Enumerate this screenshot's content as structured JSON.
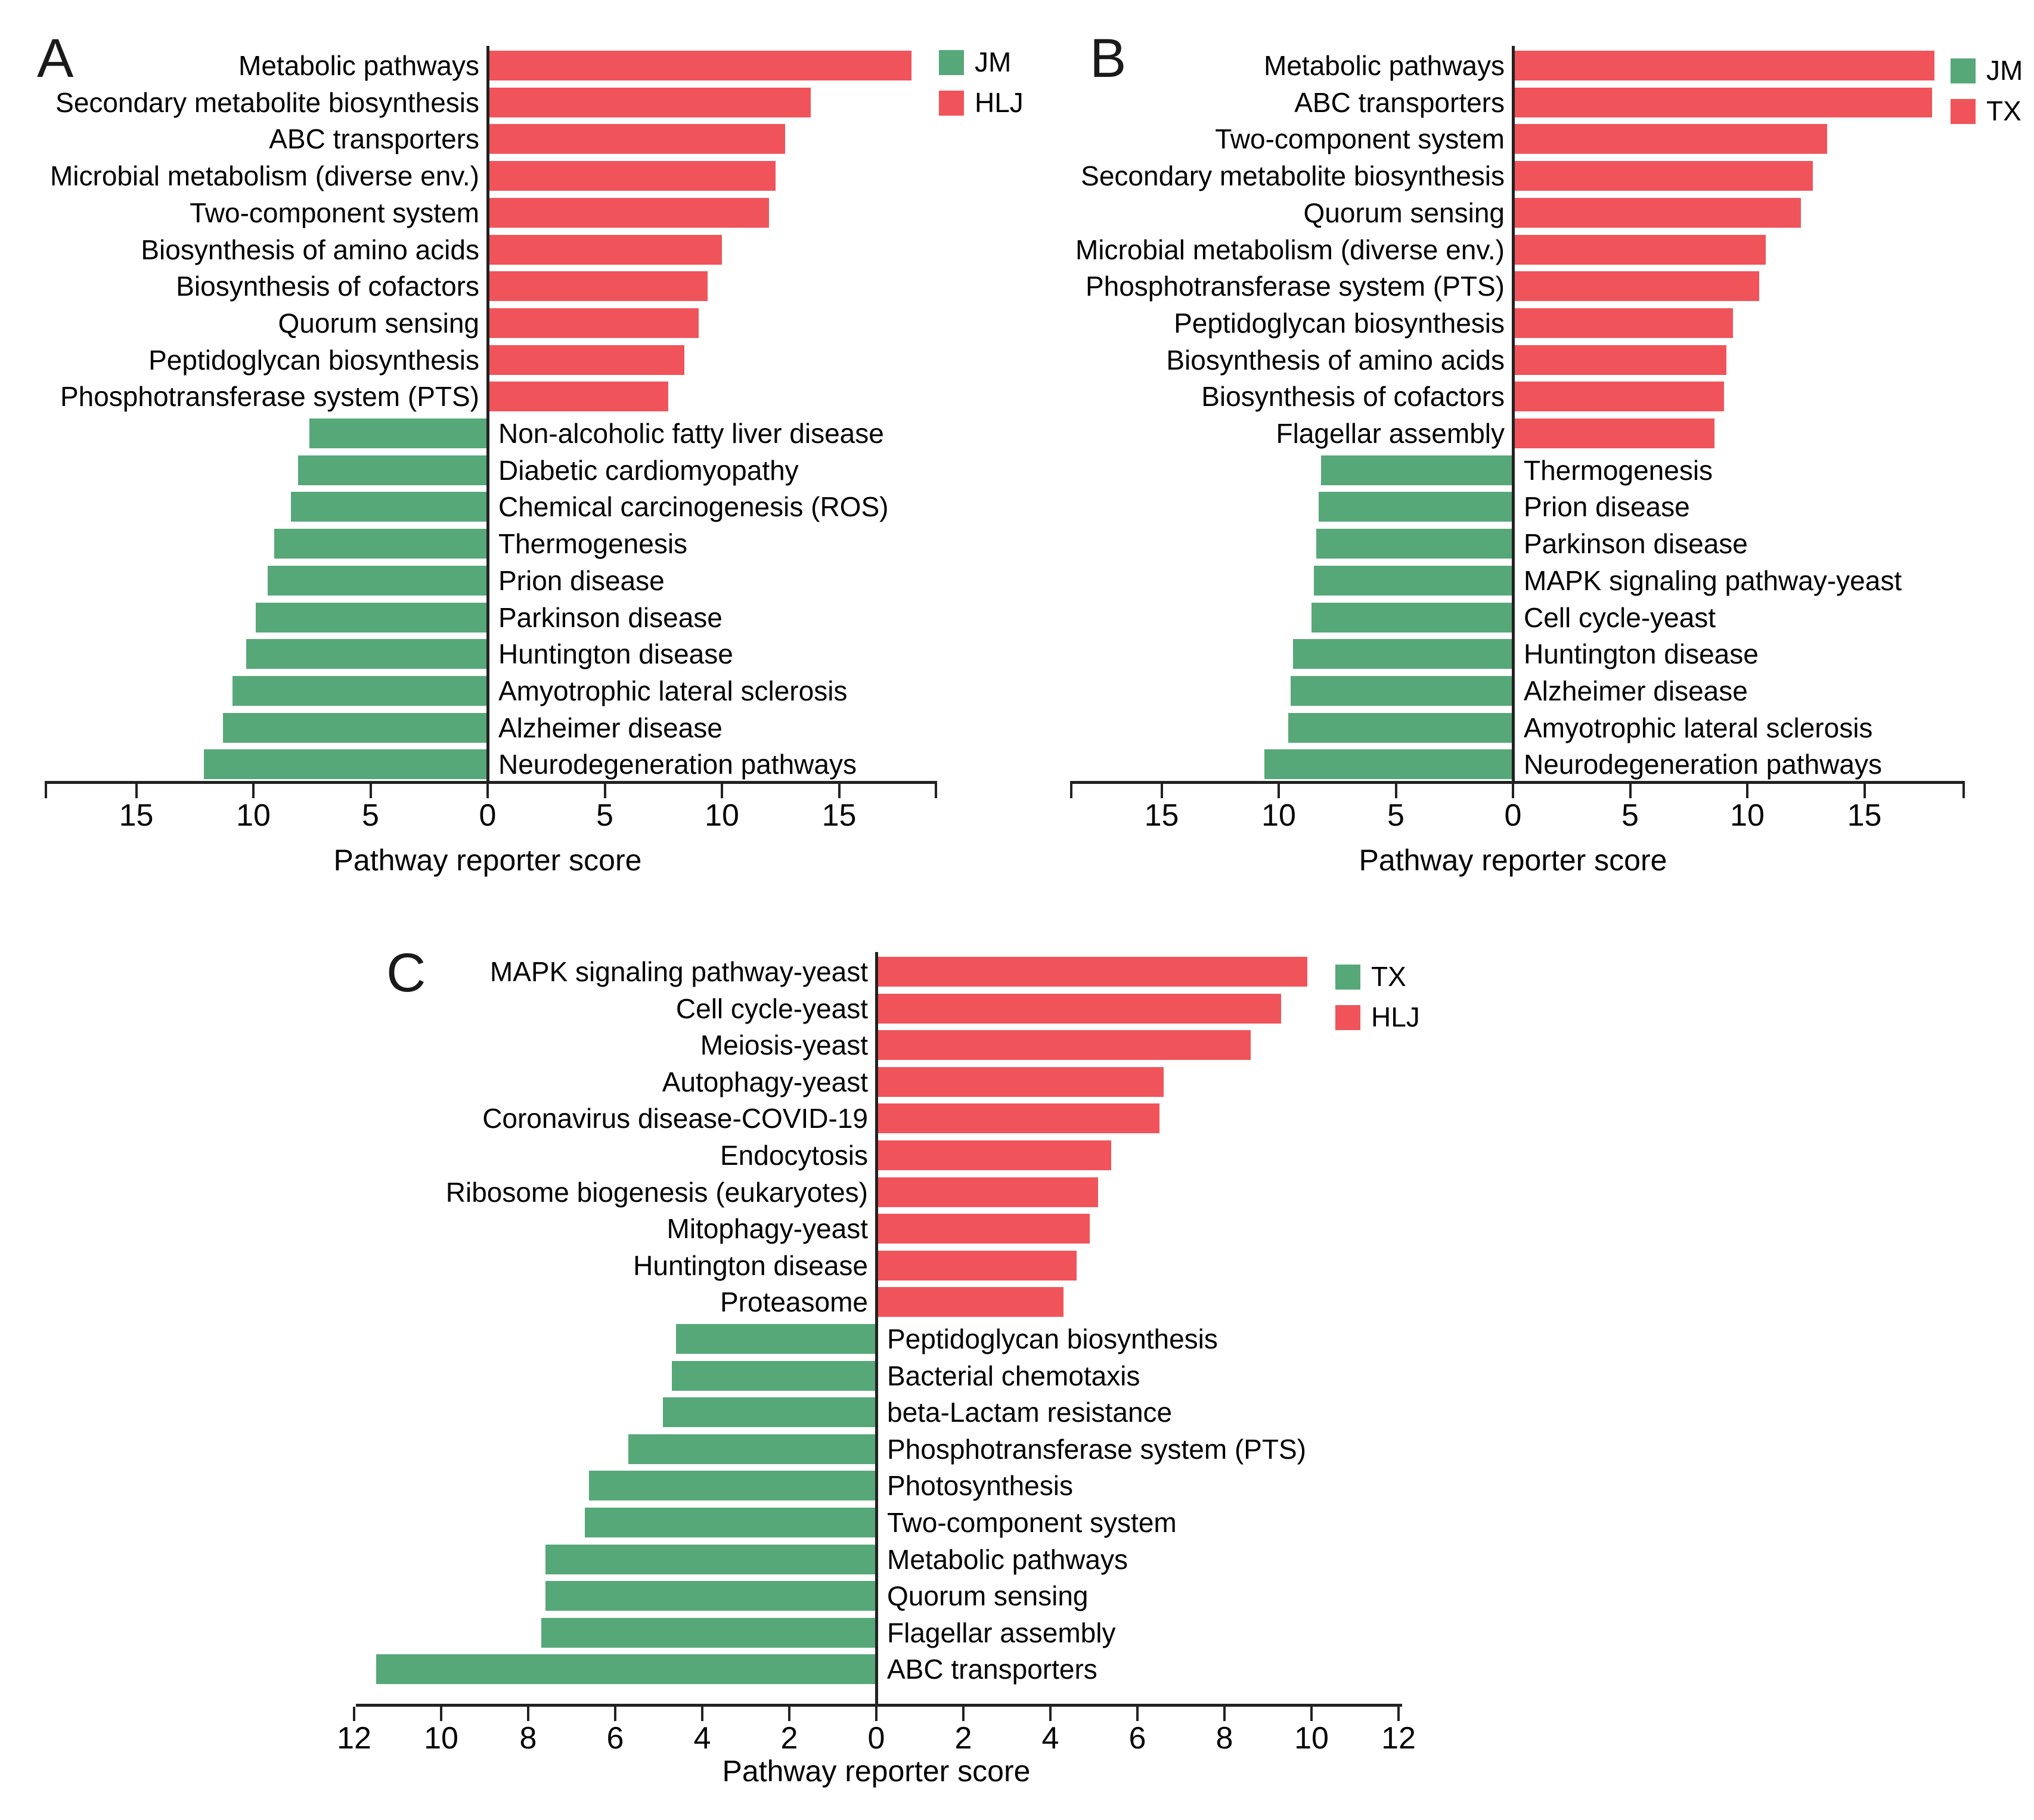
{
  "figure": {
    "xlabel": "Pathway reporter score",
    "colors": {
      "green": "#56a878",
      "red": "#f0545a",
      "axis": "#222222",
      "text": "#000000"
    }
  },
  "chart_data": [
    {
      "id": "A",
      "panel_label": "A",
      "type": "bar",
      "orientation": "horizontal-diverging",
      "xlabel": "Pathway reporter score",
      "xlim": [
        -19,
        19.2
      ],
      "grid": false,
      "legend_position": "top-right",
      "axis": {
        "tick_values": [
          -15,
          -10,
          -5,
          0,
          5,
          10,
          15
        ],
        "tick_labels": [
          "15",
          "10",
          "5",
          "0",
          "5",
          "10",
          "15"
        ]
      },
      "legend": [
        {
          "label": "JM",
          "color": "green"
        },
        {
          "label": "HLJ",
          "color": "red"
        }
      ],
      "bars": [
        {
          "label": "Metabolic pathways",
          "value": 18.1,
          "side": "right",
          "series": "HLJ",
          "color": "red"
        },
        {
          "label": "Secondary metabolite biosynthesis",
          "value": 13.8,
          "side": "right",
          "series": "HLJ",
          "color": "red"
        },
        {
          "label": "ABC transporters",
          "value": 12.7,
          "side": "right",
          "series": "HLJ",
          "color": "red"
        },
        {
          "label": "Microbial metabolism (diverse env.)",
          "value": 12.3,
          "side": "right",
          "series": "HLJ",
          "color": "red"
        },
        {
          "label": "Two-component system",
          "value": 12.0,
          "side": "right",
          "series": "HLJ",
          "color": "red"
        },
        {
          "label": "Biosynthesis of amino acids",
          "value": 10.0,
          "side": "right",
          "series": "HLJ",
          "color": "red"
        },
        {
          "label": "Biosynthesis of cofactors",
          "value": 9.4,
          "side": "right",
          "series": "HLJ",
          "color": "red"
        },
        {
          "label": "Quorum sensing",
          "value": 9.0,
          "side": "right",
          "series": "HLJ",
          "color": "red"
        },
        {
          "label": "Peptidoglycan biosynthesis",
          "value": 8.4,
          "side": "right",
          "series": "HLJ",
          "color": "red"
        },
        {
          "label": "Phosphotransferase system (PTS)",
          "value": 7.7,
          "side": "right",
          "series": "HLJ",
          "color": "red"
        },
        {
          "label": "Non-alcoholic fatty liver disease",
          "value": 7.6,
          "side": "left",
          "series": "JM",
          "color": "green"
        },
        {
          "label": "Diabetic cardiomyopathy",
          "value": 8.1,
          "side": "left",
          "series": "JM",
          "color": "green"
        },
        {
          "label": "Chemical carcinogenesis (ROS)",
          "value": 8.4,
          "side": "left",
          "series": "JM",
          "color": "green"
        },
        {
          "label": "Thermogenesis",
          "value": 9.1,
          "side": "left",
          "series": "JM",
          "color": "green"
        },
        {
          "label": "Prion disease",
          "value": 9.4,
          "side": "left",
          "series": "JM",
          "color": "green"
        },
        {
          "label": "Parkinson disease",
          "value": 9.9,
          "side": "left",
          "series": "JM",
          "color": "green"
        },
        {
          "label": "Huntington disease",
          "value": 10.3,
          "side": "left",
          "series": "JM",
          "color": "green"
        },
        {
          "label": "Amyotrophic lateral sclerosis",
          "value": 10.9,
          "side": "left",
          "series": "JM",
          "color": "green"
        },
        {
          "label": "Alzheimer disease",
          "value": 11.3,
          "side": "left",
          "series": "JM",
          "color": "green"
        },
        {
          "label": "Neurodegeneration pathways",
          "value": 12.1,
          "side": "left",
          "series": "JM",
          "color": "green"
        }
      ]
    },
    {
      "id": "B",
      "panel_label": "B",
      "type": "bar",
      "orientation": "horizontal-diverging",
      "xlabel": "Pathway reporter score",
      "xlim": [
        -19,
        19.3
      ],
      "grid": false,
      "legend_position": "top-right",
      "axis": {
        "tick_values": [
          -15,
          -10,
          -5,
          0,
          5,
          10,
          15
        ],
        "tick_labels": [
          "15",
          "10",
          "5",
          "0",
          "5",
          "10",
          "15"
        ]
      },
      "legend": [
        {
          "label": "JM",
          "color": "green"
        },
        {
          "label": "TX",
          "color": "red"
        }
      ],
      "bars": [
        {
          "label": "Metabolic pathways",
          "value": 18.0,
          "side": "right",
          "series": "TX",
          "color": "red"
        },
        {
          "label": "ABC transporters",
          "value": 17.9,
          "side": "right",
          "series": "TX",
          "color": "red"
        },
        {
          "label": "Two-component system",
          "value": 13.4,
          "side": "right",
          "series": "TX",
          "color": "red"
        },
        {
          "label": "Secondary metabolite biosynthesis",
          "value": 12.8,
          "side": "right",
          "series": "TX",
          "color": "red"
        },
        {
          "label": "Quorum sensing",
          "value": 12.3,
          "side": "right",
          "series": "TX",
          "color": "red"
        },
        {
          "label": "Microbial metabolism (diverse env.)",
          "value": 10.8,
          "side": "right",
          "series": "TX",
          "color": "red"
        },
        {
          "label": "Phosphotransferase system (PTS)",
          "value": 10.5,
          "side": "right",
          "series": "TX",
          "color": "red"
        },
        {
          "label": "Peptidoglycan biosynthesis",
          "value": 9.4,
          "side": "right",
          "series": "TX",
          "color": "red"
        },
        {
          "label": "Biosynthesis of amino acids",
          "value": 9.1,
          "side": "right",
          "series": "TX",
          "color": "red"
        },
        {
          "label": "Biosynthesis of cofactors",
          "value": 9.0,
          "side": "right",
          "series": "TX",
          "color": "red"
        },
        {
          "label": "Flagellar assembly",
          "value": 8.6,
          "side": "right",
          "series": "TX",
          "color": "red"
        },
        {
          "label": "Thermogenesis",
          "value": 8.2,
          "side": "left",
          "series": "JM",
          "color": "green"
        },
        {
          "label": "Prion disease",
          "value": 8.3,
          "side": "left",
          "series": "JM",
          "color": "green"
        },
        {
          "label": "Parkinson disease",
          "value": 8.4,
          "side": "left",
          "series": "JM",
          "color": "green"
        },
        {
          "label": "MAPK signaling pathway-yeast",
          "value": 8.5,
          "side": "left",
          "series": "JM",
          "color": "green"
        },
        {
          "label": "Cell cycle-yeast",
          "value": 8.6,
          "side": "left",
          "series": "JM",
          "color": "green"
        },
        {
          "label": "Huntington disease",
          "value": 9.4,
          "side": "left",
          "series": "JM",
          "color": "green"
        },
        {
          "label": "Alzheimer disease",
          "value": 9.5,
          "side": "left",
          "series": "JM",
          "color": "green"
        },
        {
          "label": "Amyotrophic lateral sclerosis",
          "value": 9.6,
          "side": "left",
          "series": "JM",
          "color": "green"
        },
        {
          "label": "Neurodegeneration pathways",
          "value": 10.6,
          "side": "left",
          "series": "JM",
          "color": "green"
        }
      ]
    },
    {
      "id": "C",
      "panel_label": "C",
      "type": "bar",
      "orientation": "horizontal-diverging",
      "xlabel": "Pathway reporter score",
      "xlim": [
        -12,
        12
      ],
      "grid": false,
      "legend_position": "top-right",
      "axis": {
        "tick_values": [
          -12,
          -10,
          -8,
          -6,
          -4,
          -2,
          0,
          2,
          4,
          6,
          8,
          10,
          12
        ],
        "tick_labels": [
          "12",
          "10",
          "8",
          "6",
          "4",
          "2",
          "0",
          "2",
          "4",
          "6",
          "8",
          "10",
          "12"
        ]
      },
      "legend": [
        {
          "label": "TX",
          "color": "green"
        },
        {
          "label": "HLJ",
          "color": "red"
        }
      ],
      "bars": [
        {
          "label": "MAPK signaling pathway-yeast",
          "value": 9.9,
          "side": "right",
          "series": "HLJ",
          "color": "red"
        },
        {
          "label": "Cell cycle-yeast",
          "value": 9.3,
          "side": "right",
          "series": "HLJ",
          "color": "red"
        },
        {
          "label": "Meiosis-yeast",
          "value": 8.6,
          "side": "right",
          "series": "HLJ",
          "color": "red"
        },
        {
          "label": "Autophagy-yeast",
          "value": 6.6,
          "side": "right",
          "series": "HLJ",
          "color": "red"
        },
        {
          "label": "Coronavirus disease-COVID-19",
          "value": 6.5,
          "side": "right",
          "series": "HLJ",
          "color": "red"
        },
        {
          "label": "Endocytosis",
          "value": 5.4,
          "side": "right",
          "series": "HLJ",
          "color": "red"
        },
        {
          "label": "Ribosome biogenesis (eukaryotes)",
          "value": 5.1,
          "side": "right",
          "series": "HLJ",
          "color": "red"
        },
        {
          "label": "Mitophagy-yeast",
          "value": 4.9,
          "side": "right",
          "series": "HLJ",
          "color": "red"
        },
        {
          "label": "Huntington disease",
          "value": 4.6,
          "side": "right",
          "series": "HLJ",
          "color": "red"
        },
        {
          "label": "Proteasome",
          "value": 4.3,
          "side": "right",
          "series": "HLJ",
          "color": "red"
        },
        {
          "label": "Peptidoglycan biosynthesis",
          "value": 4.6,
          "side": "left",
          "series": "TX",
          "color": "green"
        },
        {
          "label": "Bacterial chemotaxis",
          "value": 4.7,
          "side": "left",
          "series": "TX",
          "color": "green"
        },
        {
          "label": "beta-Lactam resistance",
          "value": 4.9,
          "side": "left",
          "series": "TX",
          "color": "green"
        },
        {
          "label": "Phosphotransferase system (PTS)",
          "value": 5.7,
          "side": "left",
          "series": "TX",
          "color": "green"
        },
        {
          "label": "Photosynthesis",
          "value": 6.6,
          "side": "left",
          "series": "TX",
          "color": "green"
        },
        {
          "label": "Two-component system",
          "value": 6.7,
          "side": "left",
          "series": "TX",
          "color": "green"
        },
        {
          "label": "Metabolic pathways",
          "value": 7.6,
          "side": "left",
          "series": "TX",
          "color": "green"
        },
        {
          "label": "Quorum sensing",
          "value": 7.6,
          "side": "left",
          "series": "TX",
          "color": "green"
        },
        {
          "label": "Flagellar assembly",
          "value": 7.7,
          "side": "left",
          "series": "TX",
          "color": "green"
        },
        {
          "label": "ABC transporters",
          "value": 11.5,
          "side": "left",
          "series": "TX",
          "color": "green"
        }
      ]
    }
  ]
}
